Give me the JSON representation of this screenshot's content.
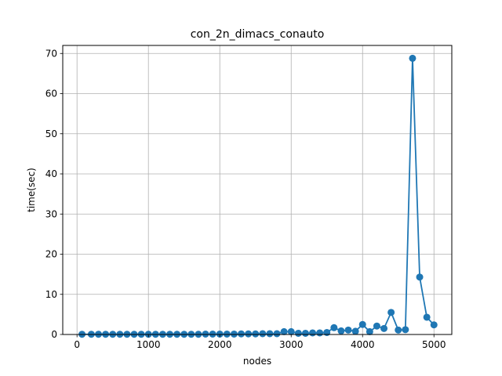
{
  "chart_data": {
    "type": "line",
    "title": "con_2n_dimacs_conauto",
    "xlabel": "nodes",
    "ylabel": "time(sec)",
    "xlim": [
      -200,
      5250
    ],
    "ylim": [
      0,
      72
    ],
    "xticks": [
      0,
      1000,
      2000,
      3000,
      4000,
      5000
    ],
    "yticks": [
      0,
      10,
      20,
      30,
      40,
      50,
      60,
      70
    ],
    "grid": true,
    "series": [
      {
        "color": "#1f77b4",
        "marker": "circle",
        "x": [
          70,
          200,
          300,
          400,
          500,
          600,
          700,
          800,
          900,
          1000,
          1100,
          1200,
          1300,
          1400,
          1500,
          1600,
          1700,
          1800,
          1900,
          2000,
          2100,
          2200,
          2300,
          2400,
          2500,
          2600,
          2700,
          2800,
          2900,
          3000,
          3100,
          3200,
          3300,
          3400,
          3500,
          3600,
          3700,
          3800,
          3900,
          4000,
          4100,
          4200,
          4300,
          4400,
          4500,
          4600,
          4700,
          4800,
          4900,
          5000
        ],
        "y": [
          0.05,
          0.05,
          0.05,
          0.05,
          0.05,
          0.05,
          0.05,
          0.05,
          0.05,
          0.05,
          0.05,
          0.05,
          0.05,
          0.05,
          0.05,
          0.05,
          0.05,
          0.1,
          0.1,
          0.1,
          0.1,
          0.1,
          0.15,
          0.15,
          0.15,
          0.2,
          0.2,
          0.2,
          0.7,
          0.7,
          0.3,
          0.3,
          0.4,
          0.4,
          0.5,
          1.7,
          0.9,
          1.1,
          0.8,
          2.5,
          0.7,
          2.1,
          1.5,
          5.5,
          1.1,
          1.2,
          68.8,
          14.3,
          4.3,
          2.4
        ]
      }
    ]
  }
}
